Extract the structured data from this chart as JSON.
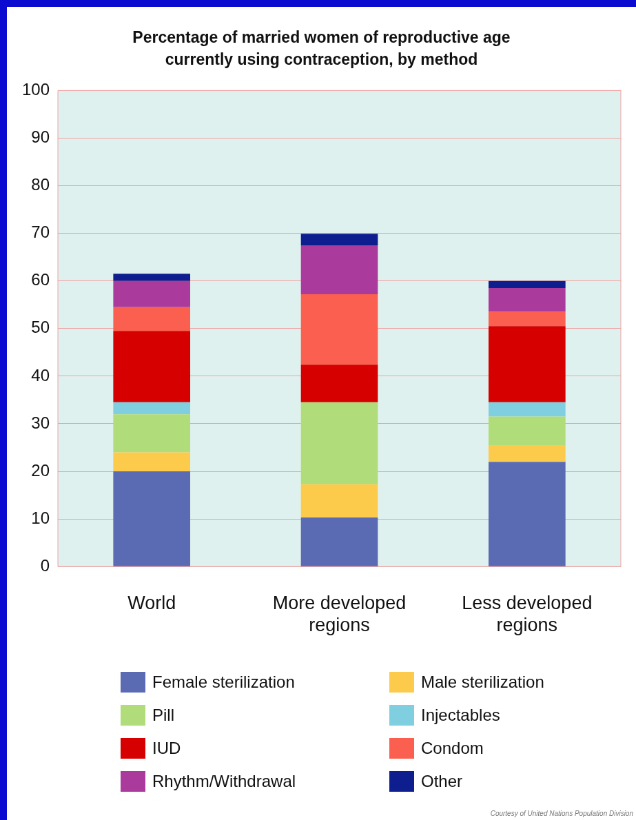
{
  "chart_data": {
    "type": "bar",
    "title": "Percentage of married women of reproductive age currently using contraception, by method",
    "categories": [
      "World",
      "More developed regions",
      "Less developed regions"
    ],
    "stacked": true,
    "ylim": [
      0,
      100
    ],
    "yticks": [
      0,
      10,
      20,
      30,
      40,
      50,
      60,
      70,
      80,
      90,
      100
    ],
    "grid": "y",
    "legend": "bottom",
    "series": [
      {
        "name": "Female sterilization",
        "color": "#5b6bb3",
        "values": [
          20,
          10.3,
          22
        ]
      },
      {
        "name": "Male sterilization",
        "color": "#fccb4c",
        "values": [
          4,
          7,
          3.5
        ]
      },
      {
        "name": "Pill",
        "color": "#b1dc7a",
        "values": [
          8,
          17.2,
          6
        ]
      },
      {
        "name": "Injectables",
        "color": "#80cfe0",
        "values": [
          2.5,
          0,
          3
        ]
      },
      {
        "name": "IUD",
        "color": "#d60000",
        "values": [
          15,
          7.9,
          16
        ]
      },
      {
        "name": "Condom",
        "color": "#fb5f4f",
        "values": [
          5,
          14.8,
          3
        ]
      },
      {
        "name": "Rhythm/Withdrawal",
        "color": "#aa3b9c",
        "values": [
          5.5,
          10.3,
          5
        ]
      },
      {
        "name": "Other",
        "color": "#0f1e8f",
        "values": [
          1.5,
          2.4,
          1.5
        ]
      }
    ],
    "annotations": [
      "Courtesy of United Nations Population Division"
    ]
  }
}
